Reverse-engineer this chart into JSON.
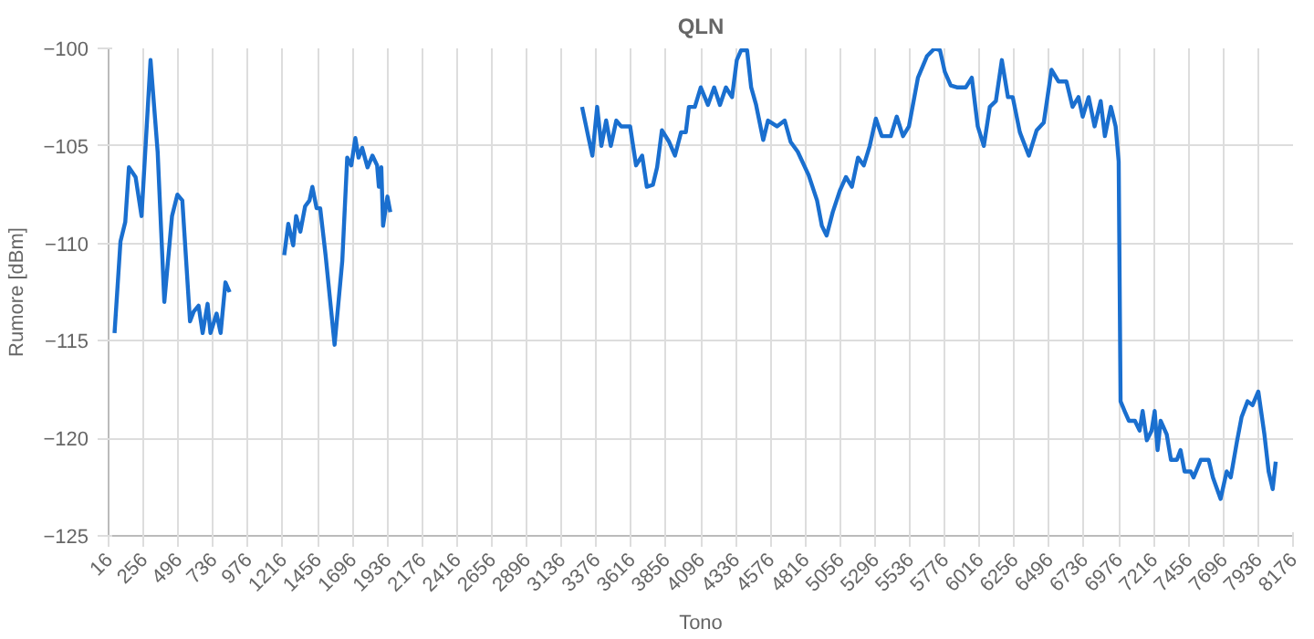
{
  "chart_data": {
    "type": "line",
    "title": "QLN",
    "xlabel": "Tono",
    "ylabel": "Rumore [dBm]",
    "xlim": [
      16,
      8176
    ],
    "xticks": [
      16,
      256,
      496,
      736,
      976,
      1216,
      1456,
      1696,
      1936,
      2176,
      2416,
      2656,
      2896,
      3136,
      3376,
      3616,
      3856,
      4096,
      4336,
      4576,
      4816,
      5056,
      5296,
      5536,
      5776,
      6016,
      6256,
      6496,
      6736,
      6976,
      7216,
      7456,
      7696,
      7936,
      8176
    ],
    "ylim": [
      -125,
      -100
    ],
    "yticks": [
      -100,
      -105,
      -110,
      -115,
      -120,
      -125
    ],
    "grid": true,
    "line_style": "solid",
    "marker": "none",
    "series": [
      {
        "color": "#1a6fcf",
        "x": [
          57,
          98,
          131,
          156,
          202,
          243,
          305,
          354,
          400,
          453,
          490,
          524,
          577,
          602,
          636,
          664,
          698,
          718,
          760,
          788,
          821,
          850,
          1000,
          1226,
          1254,
          1288,
          1308,
          1337,
          1370,
          1400,
          1420,
          1449,
          1474,
          1511,
          1573,
          1626,
          1660,
          1688,
          1716,
          1738,
          1763,
          1800,
          1834,
          1866,
          1878,
          1895,
          1907,
          1937,
          1957,
          2500,
          3278,
          3320,
          3349,
          3382,
          3411,
          3444,
          3476,
          3514,
          3547,
          3609,
          3650,
          3692,
          3724,
          3766,
          3795,
          3828,
          3878,
          3918,
          3960,
          3993,
          4014,
          4055,
          4096,
          4145,
          4188,
          4228,
          4269,
          4311,
          4344,
          4373,
          4415,
          4443,
          4477,
          4526,
          4559,
          4621,
          4674,
          4715,
          4764,
          4839,
          4897,
          4930,
          4963,
          5005,
          5054,
          5096,
          5137,
          5179,
          5219,
          5260,
          5302,
          5343,
          5405,
          5446,
          5489,
          5530,
          5592,
          5654,
          5707,
          5744,
          5777,
          5818,
          5860,
          5922,
          5963,
          6004,
          6046,
          6087,
          6129,
          6170,
          6212,
          6245,
          6294,
          6356,
          6410,
          6459,
          6512,
          6561,
          6615,
          6657,
          6698,
          6727,
          6768,
          6809,
          6851,
          6880,
          6921,
          6954,
          6975,
          6988,
          7016,
          7045,
          7087,
          7119,
          7140,
          7169,
          7202,
          7223,
          7243,
          7264,
          7306,
          7335,
          7376,
          7401,
          7429,
          7471,
          7491,
          7541,
          7595,
          7624,
          7677,
          7719,
          7747,
          7789,
          7822,
          7863,
          7897,
          7937,
          7979,
          8008,
          8036,
          8057
        ],
        "values": [
          -114.6,
          -109.9,
          -108.9,
          -106.1,
          -106.6,
          -108.6,
          -100.6,
          -105.3,
          -113.0,
          -108.6,
          -107.5,
          -107.8,
          -114.0,
          -113.5,
          -113.2,
          -114.6,
          -113.1,
          -114.6,
          -113.6,
          -114.6,
          -112.0,
          -112.5,
          null,
          -110.6,
          -109.0,
          -110.1,
          -108.6,
          -109.4,
          -108.1,
          -107.8,
          -107.1,
          -108.2,
          -108.2,
          -110.6,
          -115.2,
          -110.9,
          -105.6,
          -106.0,
          -104.6,
          -105.6,
          -105.1,
          -106.1,
          -105.5,
          -106.0,
          -107.1,
          -106.1,
          -109.1,
          -107.6,
          -108.4,
          null,
          -103.0,
          -104.5,
          -105.5,
          -103.0,
          -105.0,
          -103.7,
          -105.0,
          -103.7,
          -104.0,
          -104.0,
          -106.0,
          -105.5,
          -107.1,
          -107.0,
          -106.1,
          -104.2,
          -104.8,
          -105.5,
          -104.3,
          -104.3,
          -103.0,
          -103.0,
          -102.0,
          -102.9,
          -102.0,
          -102.9,
          -102.0,
          -102.5,
          -100.6,
          -100.1,
          -100.1,
          -102.0,
          -102.9,
          -104.7,
          -103.7,
          -104.0,
          -103.7,
          -104.8,
          -105.3,
          -106.5,
          -107.8,
          -109.1,
          -109.6,
          -108.4,
          -107.3,
          -106.6,
          -107.1,
          -105.6,
          -106.0,
          -105.0,
          -103.6,
          -104.5,
          -104.5,
          -103.5,
          -104.5,
          -104.0,
          -101.5,
          -100.4,
          -100.0,
          -100.1,
          -101.2,
          -101.9,
          -102.0,
          -102.0,
          -101.5,
          -104.0,
          -105.0,
          -103.0,
          -102.7,
          -100.6,
          -102.5,
          -102.5,
          -104.3,
          -105.5,
          -104.2,
          -103.8,
          -101.1,
          -101.7,
          -101.7,
          -103.0,
          -102.5,
          -103.5,
          -102.5,
          -104.0,
          -102.7,
          -104.5,
          -103.0,
          -104.0,
          -105.8,
          -118.1,
          -118.6,
          -119.1,
          -119.1,
          -119.6,
          -118.6,
          -120.1,
          -119.6,
          -118.6,
          -120.6,
          -119.1,
          -119.8,
          -121.1,
          -121.1,
          -120.6,
          -121.7,
          -121.7,
          -122.0,
          -121.1,
          -121.1,
          -122.0,
          -123.1,
          -121.7,
          -122.0,
          -120.2,
          -118.9,
          -118.1,
          -118.3,
          -117.6,
          -119.8,
          -121.7,
          -122.6,
          -121.2
        ]
      }
    ]
  }
}
